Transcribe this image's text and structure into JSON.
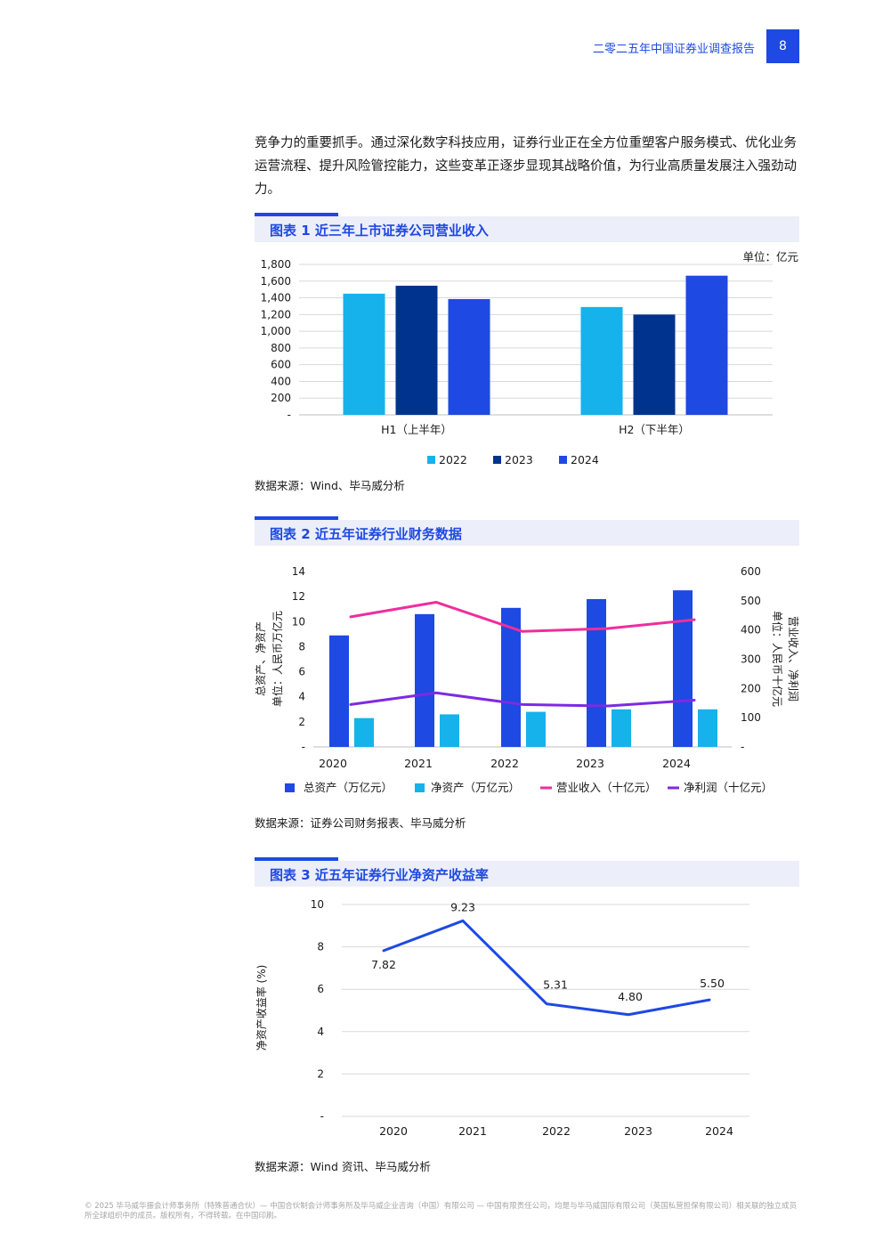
{
  "header": {
    "title": "二零二五年中国证券业调查报告",
    "page_number": "8"
  },
  "intro_text": "竞争力的重要抓手。通过深化数字科技应用，证券行业正在全方位重塑客户服务模式、优化业务运营流程、提升风险管控能力，这些变革正逐步显现其战略价值，为行业高质量发展注入强劲动力。",
  "figures": [
    {
      "title": "图表 1 近三年上市证券公司营业收入",
      "source": "数据来源：Wind、毕马威分析"
    },
    {
      "title": "图表 2 近五年证券行业财务数据",
      "source": "数据来源：证券公司财务报表、毕马威分析"
    },
    {
      "title": "图表 3 近五年证券行业净资产收益率",
      "source": "数据来源：Wind 资讯、毕马威分析"
    }
  ],
  "footer_text": "© 2025 毕马威华振会计师事务所（特殊普通合伙）— 中国合伙制会计师事务所及毕马威企业咨询（中国）有限公司 — 中国有限责任公司，均是与毕马威国际有限公司（英国私营担保有限公司）相关联的独立成员所全球组织中的成员。版权所有，不得转载。在中国印刷。",
  "chart_data": [
    {
      "type": "bar",
      "unit_label": "单位：亿元",
      "categories": [
        "H1（上半年）",
        "H2（下半年）"
      ],
      "series": [
        {
          "name": "2022",
          "color": "#16b2ec",
          "values": [
            1450,
            1290
          ]
        },
        {
          "name": "2023",
          "color": "#00338d",
          "values": [
            1545,
            1200
          ]
        },
        {
          "name": "2024",
          "color": "#1e49e2",
          "values": [
            1385,
            1665
          ]
        }
      ],
      "ylim": [
        0,
        1800
      ],
      "yticks": [
        "-",
        "200",
        "400",
        "600",
        "800",
        "1,000",
        "1,200",
        "1,400",
        "1,600",
        "1,800"
      ],
      "grid": true,
      "legend": "bottom"
    },
    {
      "type": "bar+line",
      "categories": [
        "2020",
        "2021",
        "2022",
        "2023",
        "2024"
      ],
      "ylabel_left": "总资产、净资产",
      "ylabel_left_unit": "单位：人民币万亿元",
      "ylabel_right": "营业收入、净利润",
      "ylabel_right_unit": "单位：人民币十亿元",
      "ylim_left": [
        0,
        14
      ],
      "ylim_right": [
        0,
        600
      ],
      "yticks_left": [
        "-",
        "2",
        "4",
        "6",
        "8",
        "10",
        "12",
        "14"
      ],
      "yticks_right": [
        "-",
        "100",
        "200",
        "300",
        "400",
        "500",
        "600"
      ],
      "bar_series": [
        {
          "name": "总资产（万亿元）",
          "color": "#1e49e2",
          "values": [
            8.9,
            10.6,
            11.1,
            11.8,
            12.5
          ]
        },
        {
          "name": "净资产（万亿元）",
          "color": "#16b2ec",
          "values": [
            2.3,
            2.6,
            2.8,
            3.0,
            3.0
          ]
        }
      ],
      "line_series": [
        {
          "name": "营业收入（十亿元）",
          "color": "#ee2e9d",
          "values": [
            445,
            495,
            395,
            405,
            435
          ]
        },
        {
          "name": "净利润（十亿元）",
          "color": "#7d2ae3",
          "values": [
            145,
            185,
            145,
            140,
            160
          ]
        }
      ],
      "legend": "bottom"
    },
    {
      "type": "line",
      "categories": [
        "2020",
        "2021",
        "2022",
        "2023",
        "2024"
      ],
      "values": [
        7.82,
        9.23,
        5.31,
        4.8,
        5.5
      ],
      "data_labels": [
        "7.82",
        "9.23",
        "5.31",
        "4.80",
        "5.50"
      ],
      "ylabel": "净资产收益率 (%)",
      "ylim": [
        0,
        10
      ],
      "yticks": [
        "-",
        "2",
        "4",
        "6",
        "8",
        "10"
      ],
      "color": "#1e49e2",
      "grid": true
    }
  ]
}
